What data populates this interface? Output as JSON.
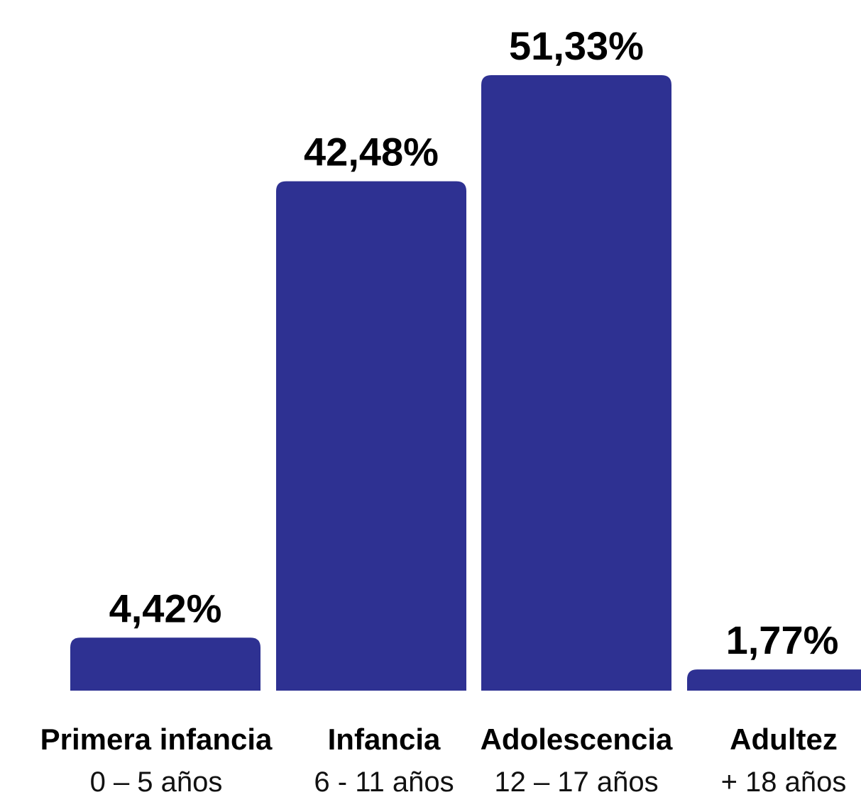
{
  "colors": {
    "bar": "#2e3192",
    "text": "#000000"
  },
  "chart_data": {
    "type": "bar",
    "title": "",
    "xlabel": "",
    "ylabel": "",
    "ylim": [
      0,
      51.33
    ],
    "grid": false,
    "categories": [
      {
        "name": "Primera infancia",
        "range": "0 – 5 años"
      },
      {
        "name": "Infancia",
        "range": "6 - 11 años"
      },
      {
        "name": "Adolescencia",
        "range": "12 – 17 años"
      },
      {
        "name": "Adultez",
        "range": "+ 18 años"
      }
    ],
    "values": [
      4.42,
      42.48,
      51.33,
      1.77
    ],
    "value_labels": [
      "4,42%",
      "42,48%",
      "51,33%",
      "1,77%"
    ]
  }
}
